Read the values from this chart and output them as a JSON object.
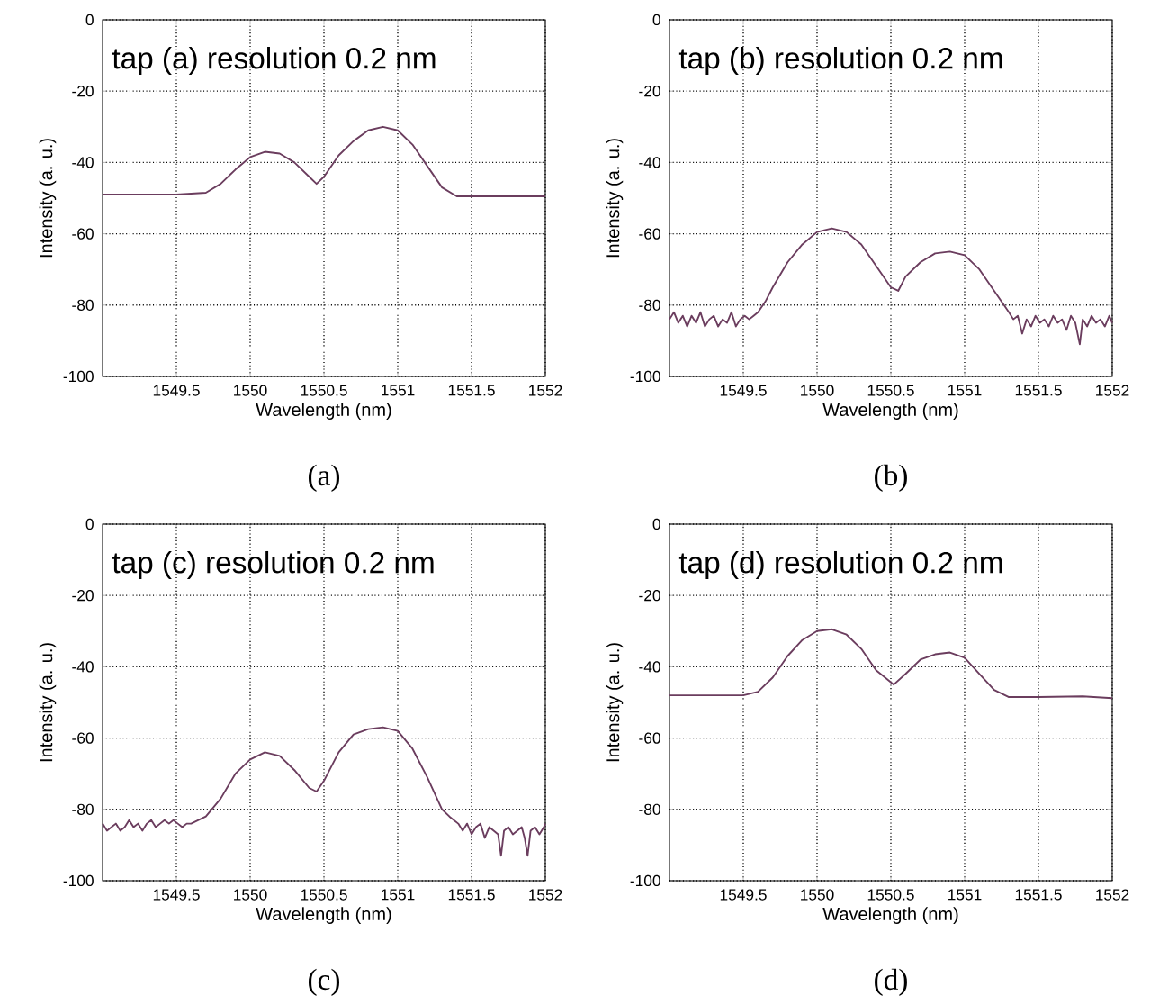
{
  "chart_data": [
    {
      "type": "line",
      "title": "tap (a)   resolution 0.2 nm",
      "xlabel": "Wavelength (nm)",
      "ylabel": "Intensity (a. u.)",
      "annotations": [
        "(a)"
      ],
      "color": "#6b3d5e",
      "xlim": [
        1549,
        1552
      ],
      "ylim": [
        -100,
        0
      ],
      "xticks": [
        1549.5,
        1550,
        1550.5,
        1551,
        1551.5,
        1552
      ],
      "yticks": [
        -100,
        -80,
        -60,
        -40,
        -20,
        0
      ],
      "grid": true,
      "line_style": "solid",
      "x": [
        1549,
        1549.5,
        1549.7,
        1549.8,
        1549.9,
        1550,
        1550.1,
        1550.2,
        1550.3,
        1550.4,
        1550.45,
        1550.5,
        1550.6,
        1550.7,
        1550.8,
        1550.9,
        1551,
        1551.1,
        1551.2,
        1551.3,
        1551.4,
        1551.6,
        1552
      ],
      "values": [
        -49,
        -49,
        -48.5,
        -46,
        -42,
        -38.5,
        -37,
        -37.5,
        -40,
        -44,
        -46,
        -44,
        -38,
        -34,
        -31,
        -30,
        -31,
        -35,
        -41,
        -47,
        -49.5,
        -49.5,
        -49.5
      ]
    },
    {
      "type": "line",
      "title": "tap (b)   resolution 0.2 nm",
      "xlabel": "Wavelength (nm)",
      "ylabel": "Intensity (a. u.)",
      "annotations": [
        "(b)"
      ],
      "color": "#6b3d5e",
      "xlim": [
        1549,
        1552
      ],
      "ylim": [
        -100,
        0
      ],
      "xticks": [
        1549.5,
        1550,
        1550.5,
        1551,
        1551.5,
        1552
      ],
      "yticks": [
        -100,
        -80,
        -60,
        -40,
        -20,
        0
      ],
      "grid": true,
      "line_style": "solid",
      "x": [
        1549.0,
        1549.03,
        1549.06,
        1549.09,
        1549.12,
        1549.15,
        1549.18,
        1549.21,
        1549.24,
        1549.27,
        1549.3,
        1549.33,
        1549.36,
        1549.39,
        1549.42,
        1549.45,
        1549.48,
        1549.51,
        1549.54,
        1549.57,
        1549.6,
        1549.65,
        1549.7,
        1549.8,
        1549.9,
        1550.0,
        1550.1,
        1550.2,
        1550.3,
        1550.4,
        1550.5,
        1550.55,
        1550.6,
        1550.7,
        1550.8,
        1550.9,
        1551.0,
        1551.1,
        1551.2,
        1551.3,
        1551.33,
        1551.36,
        1551.39,
        1551.42,
        1551.45,
        1551.48,
        1551.51,
        1551.54,
        1551.57,
        1551.6,
        1551.63,
        1551.66,
        1551.69,
        1551.72,
        1551.75,
        1551.78,
        1551.8,
        1551.83,
        1551.86,
        1551.89,
        1551.92,
        1551.95,
        1551.98,
        1552
      ],
      "values": [
        -84,
        -82,
        -85,
        -83,
        -86,
        -83,
        -85,
        -82,
        -86,
        -84,
        -83,
        -86,
        -84,
        -85,
        -82,
        -86,
        -84,
        -83,
        -84,
        -83,
        -82,
        -79,
        -75,
        -68,
        -63,
        -59.5,
        -58.5,
        -59.5,
        -63,
        -69,
        -75,
        -76,
        -72,
        -68,
        -65.5,
        -65,
        -66,
        -70,
        -76,
        -82,
        -84,
        -83,
        -88,
        -84,
        -86,
        -83,
        -85,
        -84,
        -86,
        -83,
        -85,
        -84,
        -87,
        -83,
        -85,
        -91,
        -84,
        -86,
        -83,
        -85,
        -84,
        -86,
        -83,
        -85
      ]
    },
    {
      "type": "line",
      "title": "tap (c)   resolution 0.2 nm",
      "xlabel": "Wavelength (nm)",
      "ylabel": "Intensity (a. u.)",
      "annotations": [
        "(c)"
      ],
      "color": "#6b3d5e",
      "xlim": [
        1549,
        1552
      ],
      "ylim": [
        -100,
        0
      ],
      "xticks": [
        1549.5,
        1550,
        1550.5,
        1551,
        1551.5,
        1552
      ],
      "yticks": [
        -100,
        -80,
        -60,
        -40,
        -20,
        0
      ],
      "grid": true,
      "line_style": "solid",
      "x": [
        1549.0,
        1549.03,
        1549.06,
        1549.09,
        1549.12,
        1549.15,
        1549.18,
        1549.21,
        1549.24,
        1549.27,
        1549.3,
        1549.33,
        1549.36,
        1549.39,
        1549.42,
        1549.45,
        1549.48,
        1549.51,
        1549.54,
        1549.57,
        1549.6,
        1549.65,
        1549.7,
        1549.8,
        1549.9,
        1550.0,
        1550.1,
        1550.2,
        1550.3,
        1550.4,
        1550.45,
        1550.5,
        1550.6,
        1550.7,
        1550.8,
        1550.9,
        1551.0,
        1551.1,
        1551.2,
        1551.3,
        1551.35,
        1551.38,
        1551.41,
        1551.44,
        1551.47,
        1551.5,
        1551.53,
        1551.56,
        1551.59,
        1551.62,
        1551.65,
        1551.68,
        1551.7,
        1551.72,
        1551.75,
        1551.78,
        1551.81,
        1551.84,
        1551.86,
        1551.88,
        1551.9,
        1551.93,
        1551.96,
        1551.99,
        1552
      ],
      "values": [
        -84,
        -86,
        -85,
        -84,
        -86,
        -85,
        -83,
        -85,
        -84,
        -86,
        -84,
        -83,
        -85,
        -84,
        -83,
        -84,
        -83,
        -84,
        -85,
        -84,
        -84,
        -83,
        -82,
        -77,
        -70,
        -66,
        -64,
        -65,
        -69,
        -74,
        -75,
        -72,
        -64,
        -59,
        -57.5,
        -57,
        -58,
        -63,
        -71,
        -80,
        -82,
        -83,
        -84,
        -86,
        -84,
        -87,
        -85,
        -84,
        -88,
        -85,
        -86,
        -87,
        -93,
        -86,
        -85,
        -87,
        -86,
        -85,
        -88,
        -93,
        -86,
        -85,
        -87,
        -85,
        -84
      ]
    },
    {
      "type": "line",
      "title": "tap (d)   resolution 0.2 nm",
      "xlabel": "Wavelength (nm)",
      "ylabel": "Intensity (a. u.)",
      "annotations": [
        "(d)"
      ],
      "color": "#6b3d5e",
      "xlim": [
        1549,
        1552
      ],
      "ylim": [
        -100,
        0
      ],
      "xticks": [
        1549.5,
        1550,
        1550.5,
        1551,
        1551.5,
        1552
      ],
      "yticks": [
        -100,
        -80,
        -60,
        -40,
        -20,
        0
      ],
      "grid": true,
      "line_style": "solid",
      "x": [
        1549,
        1549.5,
        1549.6,
        1549.7,
        1549.8,
        1549.9,
        1550,
        1550.1,
        1550.2,
        1550.3,
        1550.4,
        1550.52,
        1550.6,
        1550.7,
        1550.8,
        1550.9,
        1551,
        1551.1,
        1551.2,
        1551.3,
        1551.5,
        1551.8,
        1552
      ],
      "values": [
        -48,
        -48,
        -47,
        -43,
        -37,
        -32.5,
        -30,
        -29.5,
        -31,
        -35,
        -41,
        -45,
        -42,
        -38,
        -36.5,
        -36,
        -37.5,
        -42,
        -46.5,
        -48.5,
        -48.5,
        -48.3,
        -48.8
      ]
    }
  ]
}
